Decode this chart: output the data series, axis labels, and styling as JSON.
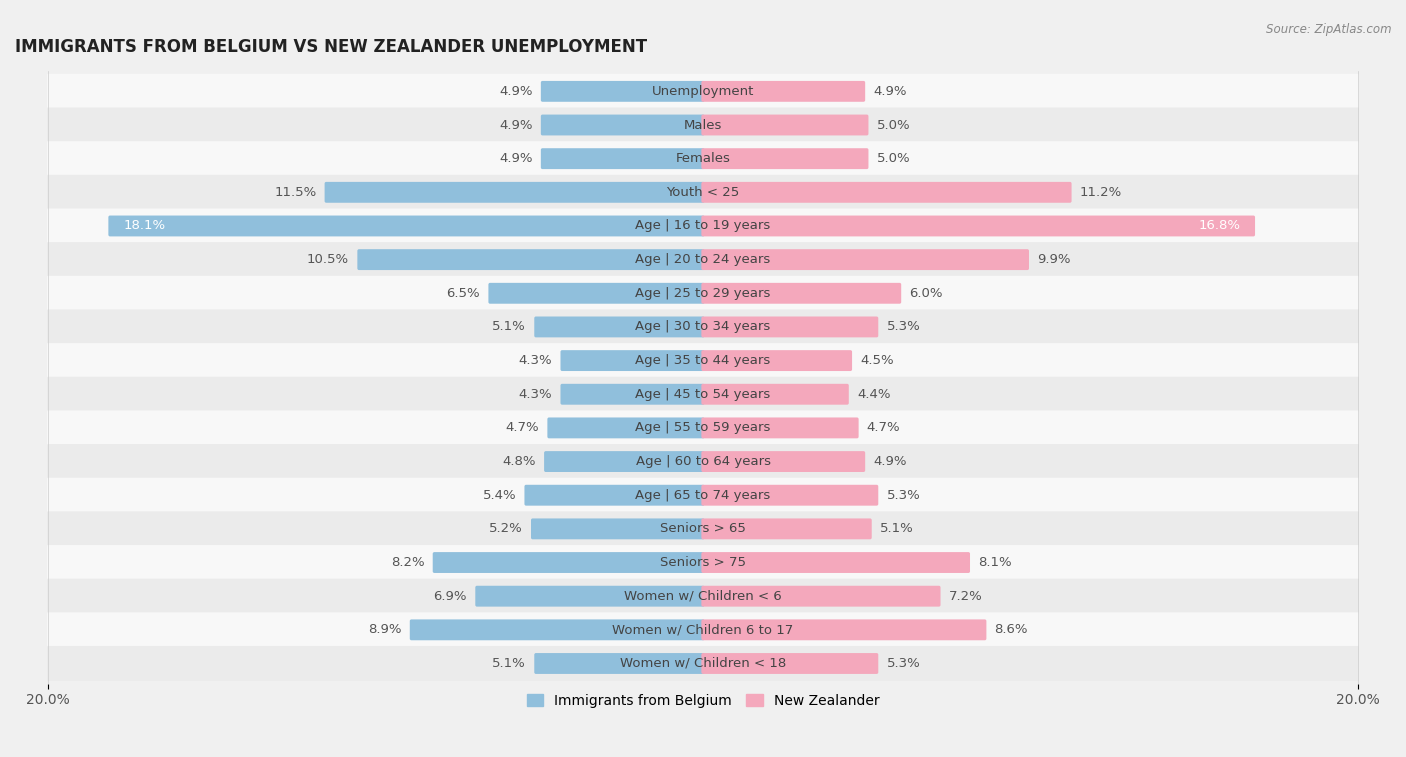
{
  "title": "IMMIGRANTS FROM BELGIUM VS NEW ZEALANDER UNEMPLOYMENT",
  "source": "Source: ZipAtlas.com",
  "categories": [
    "Unemployment",
    "Males",
    "Females",
    "Youth < 25",
    "Age | 16 to 19 years",
    "Age | 20 to 24 years",
    "Age | 25 to 29 years",
    "Age | 30 to 34 years",
    "Age | 35 to 44 years",
    "Age | 45 to 54 years",
    "Age | 55 to 59 years",
    "Age | 60 to 64 years",
    "Age | 65 to 74 years",
    "Seniors > 65",
    "Seniors > 75",
    "Women w/ Children < 6",
    "Women w/ Children 6 to 17",
    "Women w/ Children < 18"
  ],
  "belgium_values": [
    4.9,
    4.9,
    4.9,
    11.5,
    18.1,
    10.5,
    6.5,
    5.1,
    4.3,
    4.3,
    4.7,
    4.8,
    5.4,
    5.2,
    8.2,
    6.9,
    8.9,
    5.1
  ],
  "nz_values": [
    4.9,
    5.0,
    5.0,
    11.2,
    16.8,
    9.9,
    6.0,
    5.3,
    4.5,
    4.4,
    4.7,
    4.9,
    5.3,
    5.1,
    8.1,
    7.2,
    8.6,
    5.3
  ],
  "belgium_color": "#90bfdc",
  "nz_color": "#f4a8bc",
  "bg_color": "#f0f0f0",
  "row_color_light": "#f8f8f8",
  "row_color_dark": "#ebebeb",
  "max_value": 20.0,
  "bar_height": 0.52,
  "label_fontsize": 9.5,
  "title_fontsize": 12,
  "legend_label_belgium": "Immigrants from Belgium",
  "legend_label_nz": "New Zealander"
}
